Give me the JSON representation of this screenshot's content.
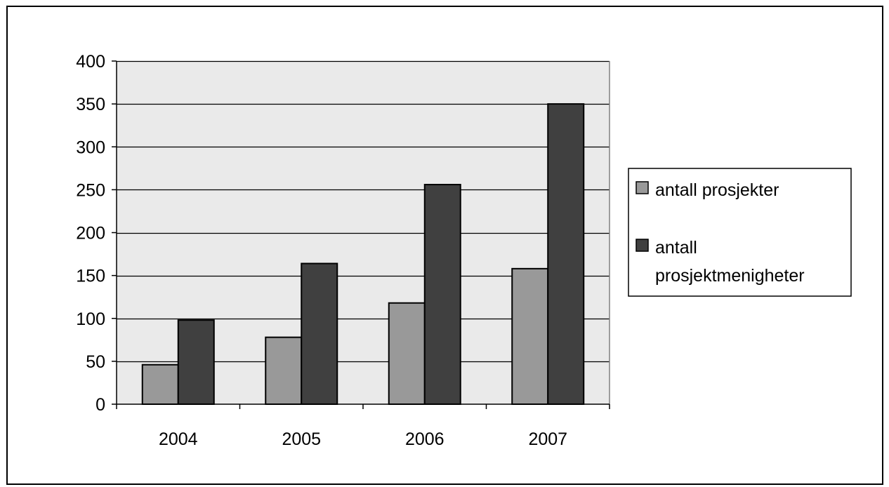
{
  "chart_data": {
    "type": "bar",
    "title": "",
    "xlabel": "",
    "ylabel": "",
    "categories": [
      "2004",
      "2005",
      "2006",
      "2007"
    ],
    "series": [
      {
        "name": "antall prosjekter",
        "values": [
          46,
          78,
          118,
          158
        ],
        "color": "#999999"
      },
      {
        "name": "antall prosjektmenigheter",
        "values": [
          98,
          164,
          256,
          350
        ],
        "color": "#404040"
      }
    ],
    "ylim": [
      0,
      400
    ],
    "yticks": [
      0,
      50,
      100,
      150,
      200,
      250,
      300,
      350,
      400
    ],
    "grid": true,
    "plot_background": "#eaeaea",
    "legend": {
      "position": "right",
      "entries": [
        {
          "lines": [
            "antall prosjekter"
          ]
        },
        {
          "lines": [
            "antall",
            "prosjektmenigheter"
          ]
        }
      ]
    }
  }
}
